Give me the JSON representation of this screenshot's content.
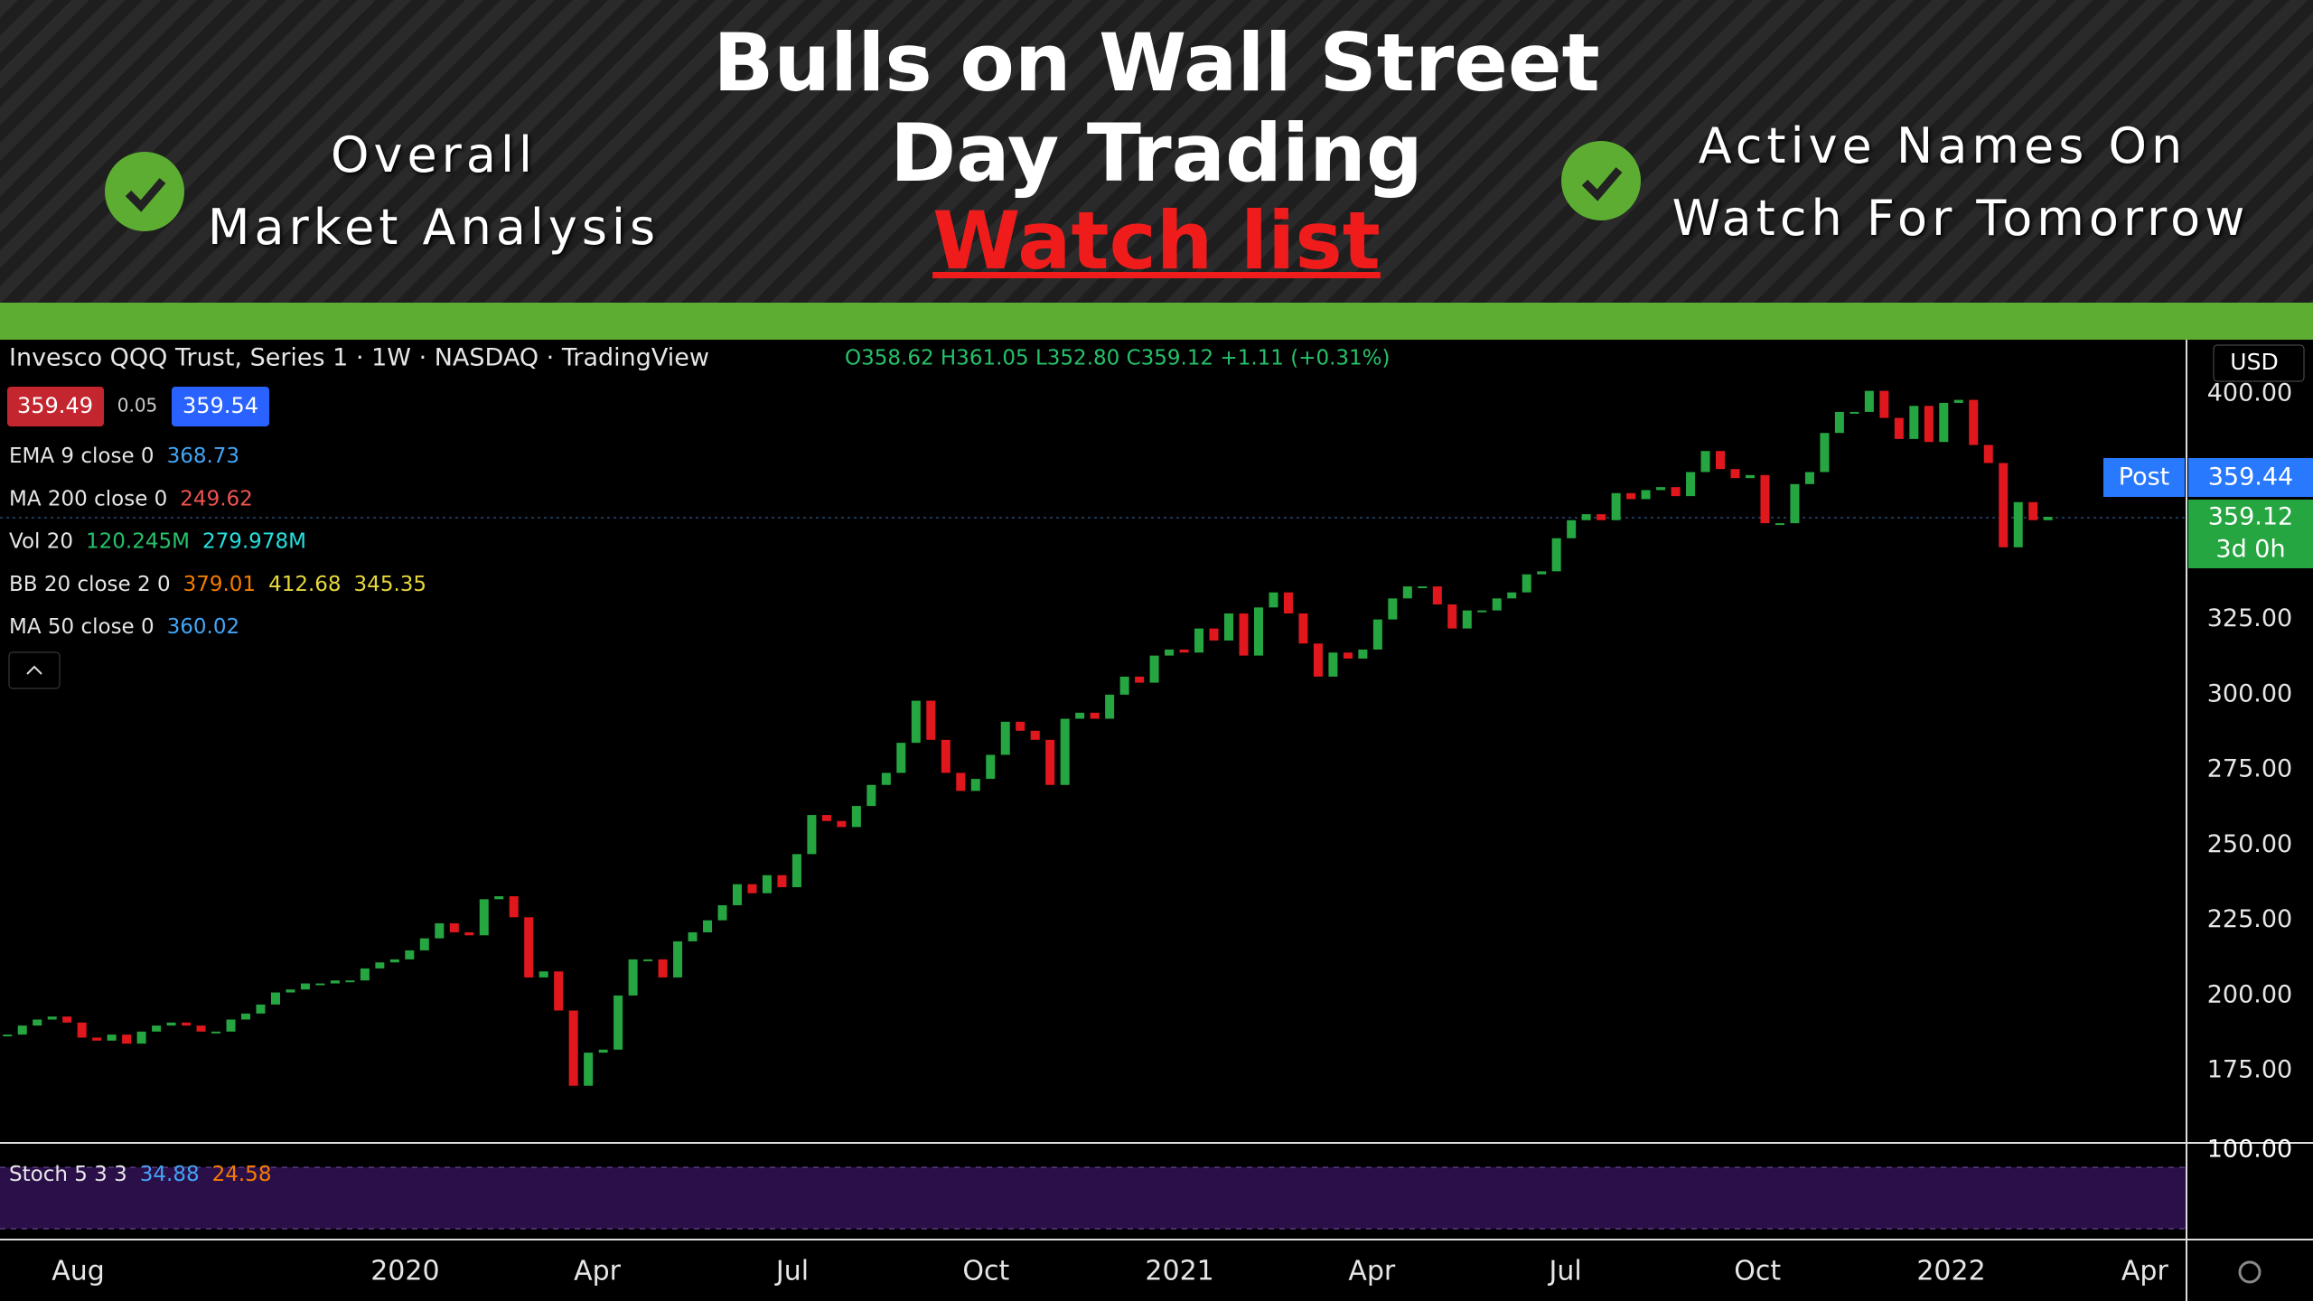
{
  "banner": {
    "title_lines": [
      "Bulls on Wall Street",
      "Day Trading"
    ],
    "highlight": "Watch list",
    "left_lines": [
      "Overall",
      "Market Analysis"
    ],
    "right_lines": [
      "Active Names On",
      "Watch For Tomorrow"
    ]
  },
  "legend": {
    "symbol": "Invesco QQQ Trust, Series 1 · 1W · NASDAQ · TradingView",
    "ohlc": "O358.62 H361.05 L352.80 C359.12 +1.11 (+0.31%)",
    "bid": "359.49",
    "spread": "0.05",
    "ask": "359.54",
    "indicators": [
      {
        "name": "EMA 9 close 0",
        "vals": [
          "368.73"
        ],
        "colors": [
          "#42a5f5"
        ]
      },
      {
        "name": "MA 200 close 0",
        "vals": [
          "249.62"
        ],
        "colors": [
          "#ef5350"
        ]
      },
      {
        "name": "Vol 20",
        "vals": [
          "120.245M",
          "279.978M"
        ],
        "colors": [
          "#26c26a",
          "#26e0e0"
        ]
      },
      {
        "name": "BB 20 close 2 0",
        "vals": [
          "379.01",
          "412.68",
          "345.35"
        ],
        "colors": [
          "#f57c00",
          "#e6d83c",
          "#e6d83c"
        ]
      },
      {
        "name": "MA 50 close 0",
        "vals": [
          "360.02"
        ],
        "colors": [
          "#42a5f5"
        ]
      }
    ],
    "stoch": {
      "name": "Stoch 5 3 3",
      "vals": [
        "34.88",
        "24.58"
      ],
      "colors": [
        "#42a5f5",
        "#f57c00"
      ]
    }
  },
  "price_axis": {
    "currency": "USD",
    "post_label": "Post",
    "post_price": "359.44",
    "last_price": "359.12",
    "countdown": "3d 0h",
    "volume_scale": "100.00"
  },
  "chart_data": {
    "type": "candlestick",
    "up_color": "#26a641",
    "down_color": "#e0181e",
    "close": [
      187,
      190,
      192,
      193,
      191,
      186,
      185,
      187,
      184,
      188,
      190,
      191,
      190,
      188,
      188,
      192,
      194,
      197,
      201,
      202,
      204,
      204,
      205,
      205,
      209,
      211,
      212,
      215,
      219,
      224,
      221,
      220,
      232,
      233,
      226,
      206,
      208,
      195,
      170,
      181,
      182,
      200,
      212,
      212,
      206,
      218,
      221,
      225,
      230,
      237,
      234,
      240,
      236,
      247,
      260,
      258,
      256,
      263,
      270,
      274,
      284,
      298,
      285,
      274,
      268,
      272,
      280,
      291,
      288,
      285,
      270,
      292,
      294,
      292,
      300,
      306,
      304,
      313,
      315,
      314,
      322,
      318,
      327,
      313,
      329,
      334,
      327,
      317,
      306,
      314,
      312,
      315,
      325,
      332,
      336,
      336,
      330,
      322,
      328,
      328,
      332,
      334,
      340,
      341,
      352,
      358,
      360,
      358,
      367,
      365,
      368,
      369,
      366,
      374,
      381,
      375,
      372,
      373,
      357,
      357,
      370,
      374,
      387,
      394,
      394,
      401,
      392,
      385,
      396,
      384,
      397,
      398,
      383,
      377,
      349,
      364,
      358,
      359.12
    ],
    "ylim": [
      151,
      418
    ],
    "yticks": [
      {
        "value": 400,
        "label": "400.00"
      },
      {
        "value": 325,
        "label": "325.00"
      },
      {
        "value": 300,
        "label": "300.00"
      },
      {
        "value": 275,
        "label": "275.00"
      },
      {
        "value": 250,
        "label": "250.00"
      },
      {
        "value": 225,
        "label": "225.00"
      },
      {
        "value": 200,
        "label": "200.00"
      },
      {
        "value": 175,
        "label": "175.00"
      }
    ],
    "xlim": [
      -0.5,
      146.3
    ],
    "xticks": [
      {
        "value": 4.75,
        "label": "Aug"
      },
      {
        "value": 26.7,
        "label": "2020"
      },
      {
        "value": 39.6,
        "label": "Apr"
      },
      {
        "value": 52.7,
        "label": "Jul"
      },
      {
        "value": 65.7,
        "label": "Oct"
      },
      {
        "value": 78.7,
        "label": "2021"
      },
      {
        "value": 91.6,
        "label": "Apr"
      },
      {
        "value": 104.6,
        "label": "Jul"
      },
      {
        "value": 117.5,
        "label": "Oct"
      },
      {
        "value": 130.5,
        "label": "2022"
      },
      {
        "value": 143.5,
        "label": "Apr"
      }
    ]
  }
}
